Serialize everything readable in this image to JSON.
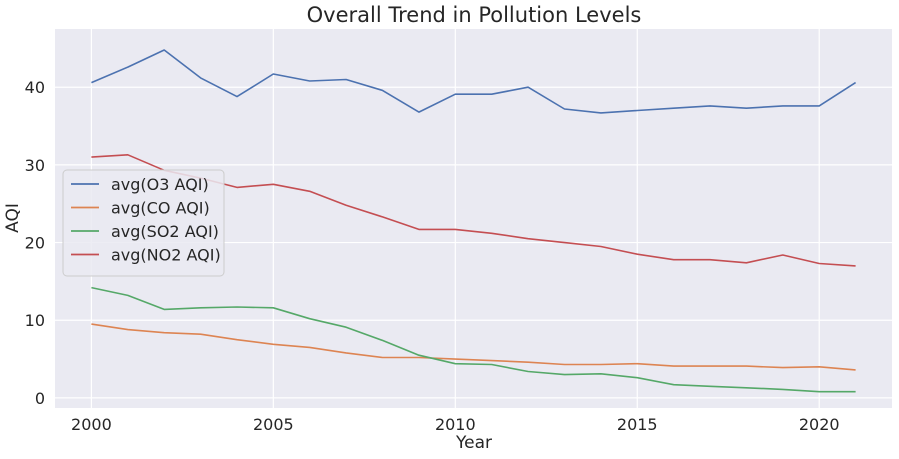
{
  "chart_data": {
    "type": "line",
    "title": "Overall Trend in Pollution Levels",
    "xlabel": "Year",
    "ylabel": "AQI",
    "x": [
      2000,
      2001,
      2002,
      2003,
      2004,
      2005,
      2006,
      2007,
      2008,
      2009,
      2010,
      2011,
      2012,
      2013,
      2014,
      2015,
      2016,
      2017,
      2018,
      2019,
      2020,
      2021
    ],
    "xlim": [
      1999,
      2022
    ],
    "ylim": [
      -1.3,
      47.5
    ],
    "xticks": [
      2000,
      2005,
      2010,
      2015,
      2020
    ],
    "yticks": [
      0,
      10,
      20,
      30,
      40
    ],
    "grid": true,
    "legend_position": "center-left",
    "background": "#eaeaf2",
    "series": [
      {
        "name": "avg(O3 AQI)",
        "color": "#4c72b0",
        "values": [
          40.6,
          42.6,
          44.8,
          41.2,
          38.8,
          41.7,
          40.8,
          41.0,
          39.6,
          36.8,
          39.1,
          39.1,
          40.0,
          37.2,
          36.7,
          37.0,
          37.3,
          37.6,
          37.3,
          37.6,
          37.6,
          40.6
        ]
      },
      {
        "name": "avg(CO AQI)",
        "color": "#dd8452",
        "values": [
          9.5,
          8.8,
          8.4,
          8.2,
          7.5,
          6.9,
          6.5,
          5.8,
          5.2,
          5.2,
          5.0,
          4.8,
          4.6,
          4.3,
          4.3,
          4.4,
          4.1,
          4.1,
          4.1,
          3.9,
          4.0,
          3.6
        ]
      },
      {
        "name": "avg(SO2 AQI)",
        "color": "#55a868",
        "values": [
          14.2,
          13.2,
          11.4,
          11.6,
          11.7,
          11.6,
          10.2,
          9.1,
          7.4,
          5.5,
          4.4,
          4.3,
          3.4,
          3.0,
          3.1,
          2.6,
          1.7,
          1.5,
          1.3,
          1.1,
          0.8,
          0.8
        ]
      },
      {
        "name": "avg(NO2 AQI)",
        "color": "#c44e52",
        "values": [
          31.0,
          31.3,
          29.3,
          28.3,
          27.1,
          27.5,
          26.6,
          24.8,
          23.3,
          21.7,
          21.7,
          21.2,
          20.5,
          20.0,
          19.5,
          18.5,
          17.8,
          17.8,
          17.4,
          18.4,
          17.3,
          17.0
        ]
      }
    ]
  }
}
